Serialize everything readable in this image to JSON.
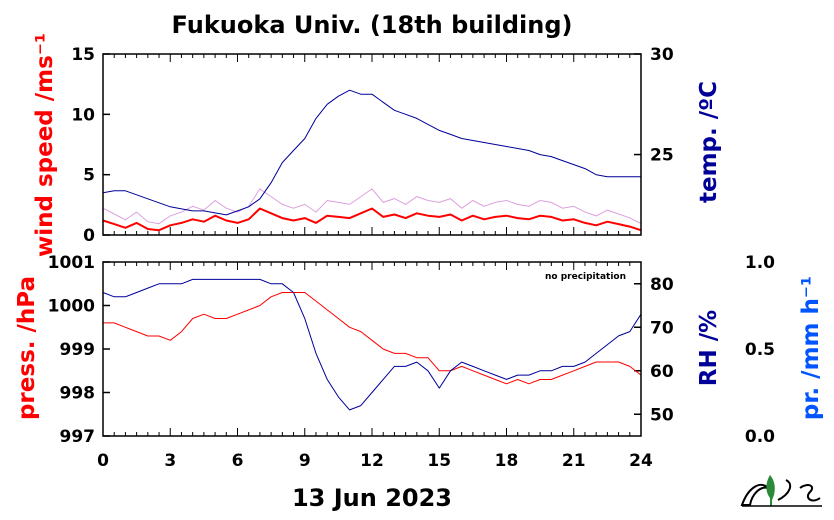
{
  "title": "Fukuoka Univ. (18th building)",
  "date_label": "13 Jun 2023",
  "precip_note": "no precipitation",
  "x_ticks": [
    "0",
    "3",
    "6",
    "9",
    "12",
    "15",
    "18",
    "21",
    "24"
  ],
  "colors": {
    "wind": "#ff0000",
    "wind_gust": "#dda0dd",
    "temp": "#000099",
    "pressure": "#ff0000",
    "rh": "#000099",
    "precip": "#0055ff"
  },
  "chart_data": [
    {
      "type": "line",
      "panel": "top",
      "x_range": [
        0,
        24
      ],
      "y_left": {
        "label": "wind speed /ms⁻¹",
        "range": [
          0,
          15
        ],
        "ticks": [
          "0",
          "5",
          "10",
          "15"
        ]
      },
      "y_right": {
        "label": "temp. /ºC",
        "range": [
          21,
          30
        ],
        "ticks": [
          "25",
          "30"
        ]
      },
      "series": [
        {
          "axis": "left",
          "x": [
            0,
            0.5,
            1,
            1.5,
            2,
            2.5,
            3,
            3.5,
            4,
            4.5,
            5,
            5.5,
            6,
            6.5,
            7,
            7.5,
            8,
            8.5,
            9,
            9.5,
            10,
            10.5,
            11,
            11.5,
            12,
            12.5,
            13,
            13.5,
            14,
            14.5,
            15,
            15.5,
            16,
            16.5,
            17,
            17.5,
            18,
            18.5,
            19,
            19.5,
            20,
            20.5,
            21,
            21.5,
            22,
            22.5,
            23,
            23.5,
            24
          ],
          "y": [
            1.2,
            0.9,
            0.6,
            1.0,
            0.5,
            0.4,
            0.8,
            1.0,
            1.3,
            1.1,
            1.6,
            1.2,
            1.0,
            1.3,
            2.2,
            1.8,
            1.4,
            1.2,
            1.4,
            1.0,
            1.6,
            1.5,
            1.4,
            1.8,
            2.2,
            1.5,
            1.7,
            1.4,
            1.8,
            1.6,
            1.5,
            1.7,
            1.2,
            1.6,
            1.3,
            1.5,
            1.6,
            1.4,
            1.3,
            1.6,
            1.5,
            1.2,
            1.3,
            1.0,
            0.8,
            1.1,
            0.9,
            0.7,
            0.4
          ]
        },
        {
          "axis": "right",
          "x": [
            0,
            0.5,
            1,
            1.5,
            2,
            2.5,
            3,
            3.5,
            4,
            4.5,
            5,
            5.5,
            6,
            6.5,
            7,
            7.5,
            8,
            8.5,
            9,
            9.5,
            10,
            10.5,
            11,
            11.5,
            12,
            12.5,
            13,
            13.5,
            14,
            14.5,
            15,
            15.5,
            16,
            16.5,
            17,
            17.5,
            18,
            18.5,
            19,
            19.5,
            20,
            20.5,
            21,
            21.5,
            22,
            22.5,
            23,
            23.5,
            24
          ],
          "y": [
            23.1,
            23.2,
            23.2,
            23.0,
            22.8,
            22.6,
            22.4,
            22.3,
            22.2,
            22.2,
            22.1,
            22.0,
            22.2,
            22.4,
            22.8,
            23.6,
            24.6,
            25.2,
            25.8,
            26.8,
            27.5,
            27.9,
            28.2,
            28.0,
            28.0,
            27.6,
            27.2,
            27.0,
            26.8,
            26.5,
            26.2,
            26.0,
            25.8,
            25.7,
            25.6,
            25.5,
            25.4,
            25.3,
            25.2,
            25.0,
            24.9,
            24.7,
            24.5,
            24.3,
            24.0,
            23.9,
            23.9,
            23.9,
            23.9
          ]
        }
      ]
    },
    {
      "type": "line",
      "panel": "bottom",
      "x_range": [
        0,
        24
      ],
      "y_left": {
        "label": "press. /hPa",
        "range": [
          997,
          1001
        ],
        "ticks": [
          "997",
          "998",
          "999",
          "1000",
          "1001"
        ]
      },
      "y_right": {
        "label": "RH /%",
        "range": [
          45,
          85
        ],
        "ticks": [
          "50",
          "60",
          "70",
          "80"
        ]
      },
      "y_right2": {
        "label": "pr. /mm h⁻¹",
        "range": [
          0,
          1
        ],
        "ticks": [
          "0.0",
          "0.5",
          "1.0"
        ]
      },
      "series": [
        {
          "axis": "left",
          "x": [
            0,
            0.5,
            1,
            1.5,
            2,
            2.5,
            3,
            3.5,
            4,
            4.5,
            5,
            5.5,
            6,
            6.5,
            7,
            7.5,
            8,
            8.5,
            9,
            9.5,
            10,
            10.5,
            11,
            11.5,
            12,
            12.5,
            13,
            13.5,
            14,
            14.5,
            15,
            15.5,
            16,
            16.5,
            17,
            17.5,
            18,
            18.5,
            19,
            19.5,
            20,
            20.5,
            21,
            21.5,
            22,
            22.5,
            23,
            23.5,
            24
          ],
          "y": [
            999.6,
            999.6,
            999.5,
            999.4,
            999.3,
            999.3,
            999.2,
            999.4,
            999.7,
            999.8,
            999.7,
            999.7,
            999.8,
            999.9,
            1000.0,
            1000.2,
            1000.3,
            1000.3,
            1000.3,
            1000.1,
            999.9,
            999.7,
            999.5,
            999.4,
            999.2,
            999.0,
            998.9,
            998.9,
            998.8,
            998.8,
            998.5,
            998.5,
            998.6,
            998.5,
            998.4,
            998.3,
            998.2,
            998.3,
            998.2,
            998.3,
            998.3,
            998.4,
            998.5,
            998.6,
            998.7,
            998.7,
            998.7,
            998.6,
            998.4
          ]
        },
        {
          "axis": "right",
          "x": [
            0,
            0.5,
            1,
            1.5,
            2,
            2.5,
            3,
            3.5,
            4,
            4.5,
            5,
            5.5,
            6,
            6.5,
            7,
            7.5,
            8,
            8.5,
            9,
            9.5,
            10,
            10.5,
            11,
            11.5,
            12,
            12.5,
            13,
            13.5,
            14,
            14.5,
            15,
            15.5,
            16,
            16.5,
            17,
            17.5,
            18,
            18.5,
            19,
            19.5,
            20,
            20.5,
            21,
            21.5,
            22,
            22.5,
            23,
            23.5,
            24
          ],
          "y": [
            78,
            77,
            77,
            78,
            79,
            80,
            80,
            80,
            81,
            81,
            81,
            81,
            81,
            81,
            81,
            80,
            80,
            78,
            72,
            64,
            58,
            54,
            51,
            52,
            55,
            58,
            61,
            61,
            62,
            60,
            56,
            60,
            62,
            61,
            60,
            59,
            58,
            59,
            59,
            60,
            60,
            61,
            61,
            62,
            64,
            66,
            68,
            69,
            73
          ]
        }
      ]
    }
  ]
}
